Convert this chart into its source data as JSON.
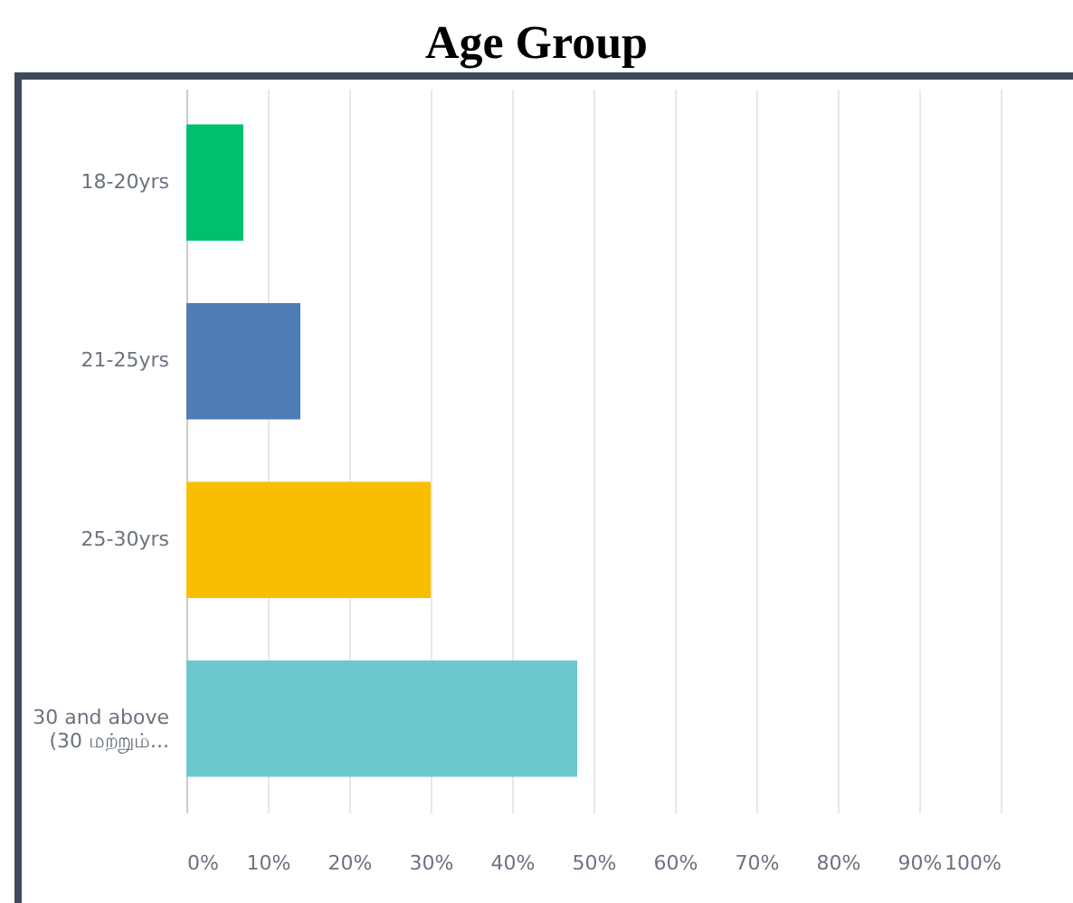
{
  "chart_data": {
    "type": "bar",
    "orientation": "horizontal",
    "title": "Age Group",
    "categories": [
      "18-20yrs",
      "21-25yrs",
      "25-30yrs",
      "30 and above (30 மற்றும்..."
    ],
    "values": [
      7,
      14,
      30,
      48
    ],
    "colors": [
      "#00bf6f",
      "#507cb6",
      "#f9be00",
      "#6bc8cd"
    ],
    "xlim": [
      0,
      100
    ],
    "xticks": [
      {
        "value": 0,
        "label": "0%"
      },
      {
        "value": 10,
        "label": "10%"
      },
      {
        "value": 20,
        "label": "20%"
      },
      {
        "value": 30,
        "label": "30%"
      },
      {
        "value": 40,
        "label": "40%"
      },
      {
        "value": 50,
        "label": "50%"
      },
      {
        "value": 60,
        "label": "60%"
      },
      {
        "value": 70,
        "label": "70%"
      },
      {
        "value": 80,
        "label": "80%"
      },
      {
        "value": 90,
        "label": "90%"
      },
      {
        "value": 100,
        "label": "100%"
      }
    ],
    "grid": "x"
  }
}
